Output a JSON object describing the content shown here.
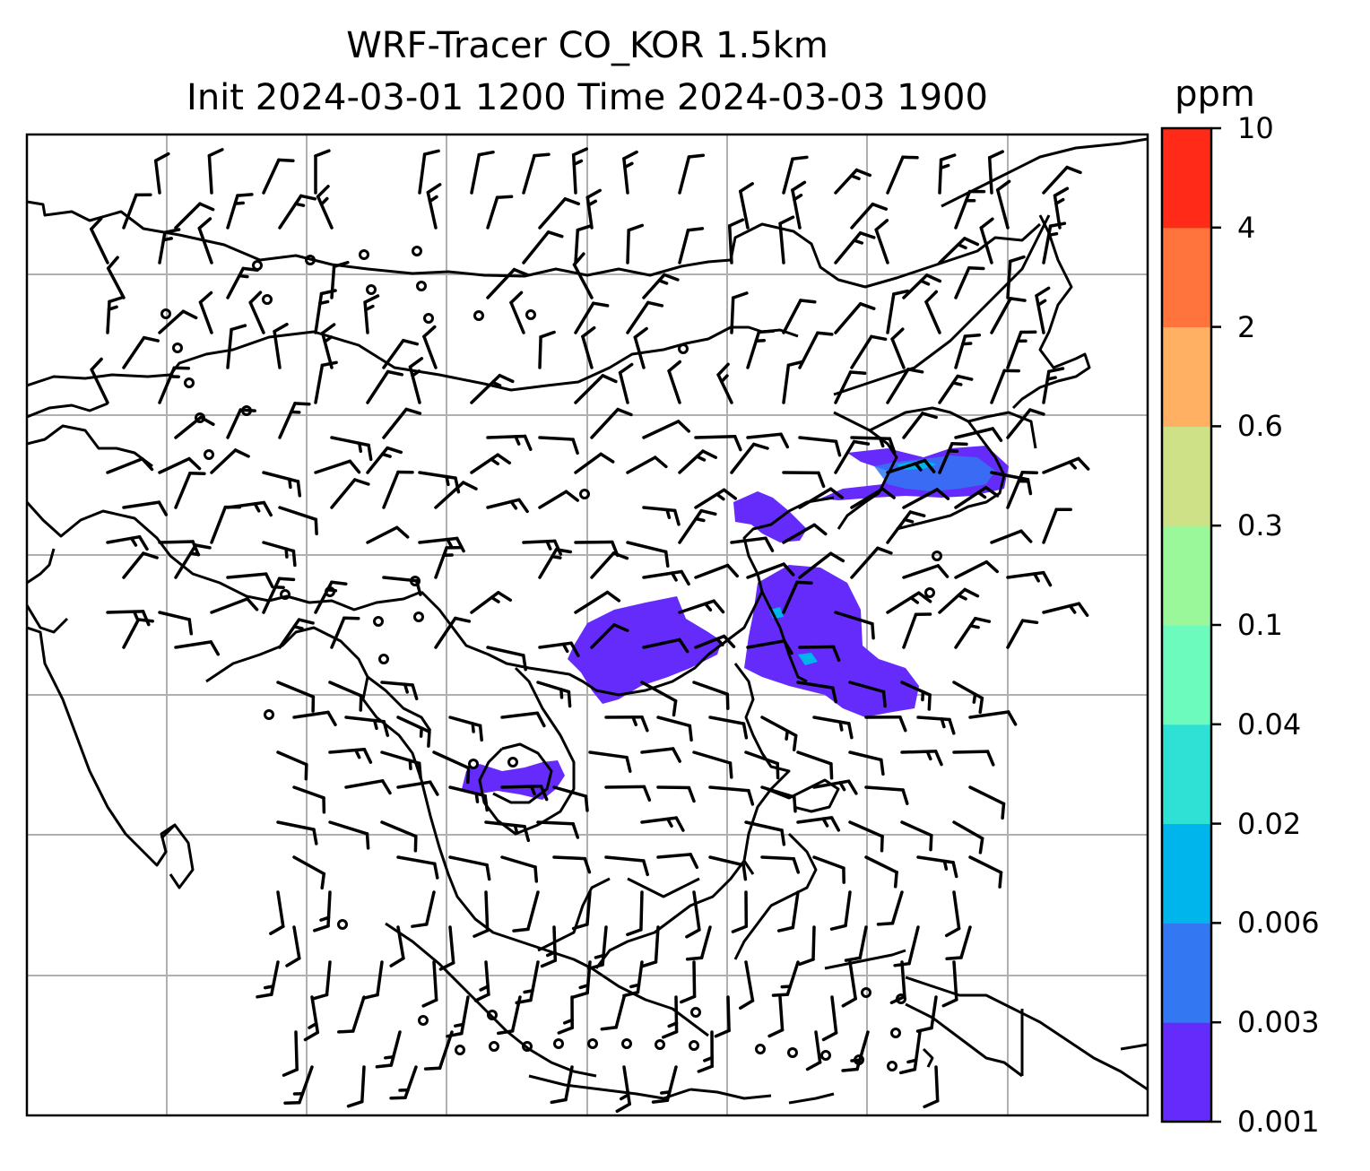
{
  "title": {
    "line1": "WRF-Tracer CO_KOR 1.5km",
    "line2": "Init 2024-03-01 1200 Time 2024-03-03 1900"
  },
  "colorbar": {
    "unit": "ppm",
    "levels": [
      "0.001",
      "0.003",
      "0.006",
      "0.02",
      "0.04",
      "0.1",
      "0.3",
      "0.6",
      "2",
      "4",
      "10"
    ],
    "colors": [
      "#652bfa",
      "#3377f3",
      "#00b4ec",
      "#2fe0d4",
      "#6dfbbd",
      "#9af89a",
      "#cfe187",
      "#ffb063",
      "#ff733c",
      "#ff2a17"
    ]
  },
  "map": {
    "grid": "on",
    "plume_color": "#652bfa",
    "features": [
      "coastlines",
      "wind-barbs",
      "tracer-contours"
    ]
  }
}
